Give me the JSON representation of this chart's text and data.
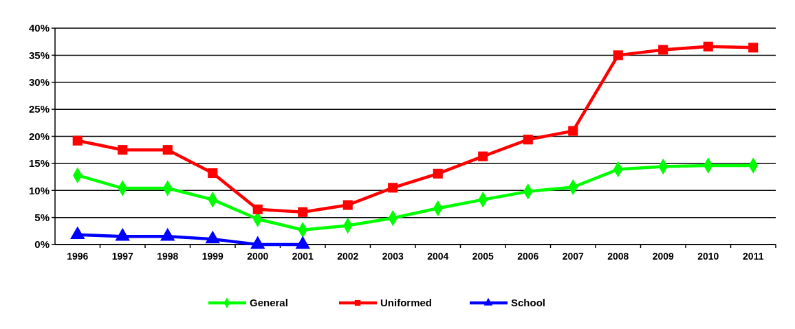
{
  "chart_data": {
    "type": "line",
    "categories": [
      "1996",
      "1997",
      "1998",
      "1999",
      "2000",
      "2001",
      "2002",
      "2003",
      "2004",
      "2005",
      "2006",
      "2007",
      "2008",
      "2009",
      "2010",
      "2011"
    ],
    "series": [
      {
        "name": "General",
        "color": "#00ff00",
        "marker": "diamond",
        "values": [
          12.8,
          10.4,
          10.4,
          8.3,
          4.7,
          2.7,
          3.5,
          4.9,
          6.7,
          8.3,
          9.8,
          10.6,
          13.9,
          14.4,
          14.6,
          14.6
        ]
      },
      {
        "name": "Uniformed",
        "color": "#ff0000",
        "marker": "square",
        "values": [
          19.2,
          17.5,
          17.5,
          13.2,
          6.5,
          6.0,
          7.3,
          10.5,
          13.1,
          16.3,
          19.4,
          21.0,
          35.0,
          36.0,
          36.6,
          36.4
        ]
      },
      {
        "name": "School",
        "color": "#0000ff",
        "marker": "triangle",
        "values": [
          1.8,
          1.5,
          1.5,
          1.0,
          0,
          0,
          null,
          null,
          null,
          null,
          null,
          null,
          null,
          null,
          null,
          null
        ]
      }
    ],
    "ylim": [
      0,
      40
    ],
    "yticks": [
      {
        "value": 0,
        "label": "0%"
      },
      {
        "value": 5,
        "label": "5%"
      },
      {
        "value": 10,
        "label": "10%"
      },
      {
        "value": 15,
        "label": "15%"
      },
      {
        "value": 20,
        "label": "20%"
      },
      {
        "value": 25,
        "label": "25%"
      },
      {
        "value": 30,
        "label": "30%"
      },
      {
        "value": 35,
        "label": "35%"
      },
      {
        "value": 40,
        "label": "40%"
      }
    ],
    "grid": "y",
    "legend": "bottom"
  }
}
